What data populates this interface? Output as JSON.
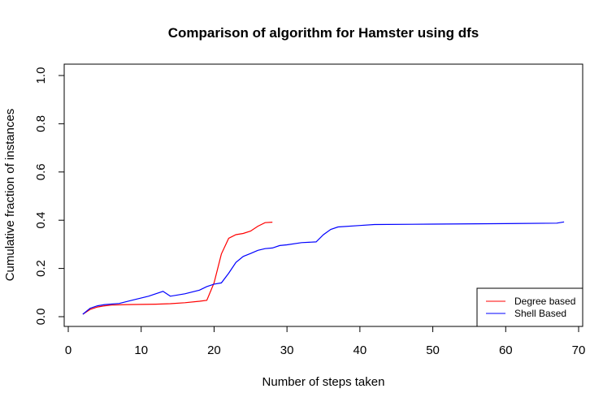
{
  "chart_data": {
    "type": "line",
    "title": "Comparison of algorithm for Hamster using dfs",
    "xlabel": "Number of steps taken",
    "ylabel": "Cumulative fraction of instances",
    "xlim": [
      0,
      70
    ],
    "ylim": [
      0,
      1
    ],
    "xticks": [
      0,
      10,
      20,
      30,
      40,
      50,
      60,
      70
    ],
    "yticks": [
      "0.0",
      "0.2",
      "0.4",
      "0.6",
      "0.8",
      "1.0"
    ],
    "grid": false,
    "legend_position": "bottom-right",
    "series": [
      {
        "name": "Degree based",
        "color": "#ff0000",
        "x": [
          2,
          3,
          4,
          5,
          6,
          8,
          10,
          12,
          14,
          16,
          18,
          19,
          20,
          21,
          22,
          23,
          24,
          25,
          26,
          27,
          28
        ],
        "y": [
          0.01,
          0.03,
          0.04,
          0.045,
          0.048,
          0.05,
          0.051,
          0.052,
          0.054,
          0.058,
          0.064,
          0.068,
          0.14,
          0.26,
          0.325,
          0.34,
          0.345,
          0.355,
          0.375,
          0.39,
          0.392
        ]
      },
      {
        "name": "Shell Based",
        "color": "#0000ff",
        "x": [
          2,
          3,
          4,
          5,
          7,
          9,
          11,
          13,
          14,
          16,
          18,
          19,
          20,
          21,
          22,
          23,
          24,
          25,
          26,
          27,
          28,
          29,
          30,
          32,
          34,
          35,
          36,
          37,
          40,
          42,
          50,
          60,
          67,
          68
        ],
        "y": [
          0.01,
          0.035,
          0.045,
          0.05,
          0.055,
          0.07,
          0.085,
          0.105,
          0.085,
          0.095,
          0.11,
          0.125,
          0.135,
          0.14,
          0.18,
          0.225,
          0.25,
          0.262,
          0.275,
          0.282,
          0.285,
          0.295,
          0.298,
          0.307,
          0.31,
          0.34,
          0.362,
          0.372,
          0.378,
          0.382,
          0.384,
          0.386,
          0.388,
          0.393
        ]
      }
    ]
  }
}
